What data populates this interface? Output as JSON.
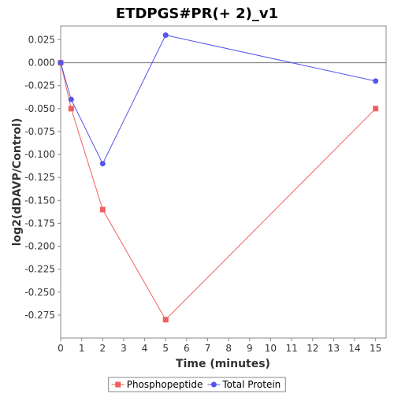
{
  "chart_data": {
    "type": "line",
    "title": "ETDPGS#PR(+ 2)_v1",
    "xlabel": "Time (minutes)",
    "ylabel": "log2(dDAVP/Control)",
    "xlim": [
      0,
      15.5
    ],
    "ylim": [
      -0.3,
      0.04
    ],
    "xticks": [
      0,
      1,
      2,
      3,
      4,
      5,
      6,
      7,
      8,
      9,
      10,
      11,
      12,
      13,
      14,
      15
    ],
    "yticks": [
      0.025,
      0.0,
      -0.025,
      -0.05,
      -0.075,
      -0.1,
      -0.125,
      -0.15,
      -0.175,
      -0.2,
      -0.225,
      -0.25,
      -0.275
    ],
    "ytick_labels": [
      "0.025",
      "0.000",
      "-0.025",
      "-0.050",
      "-0.075",
      "-0.100",
      "-0.125",
      "-0.150",
      "-0.175",
      "-0.200",
      "-0.225",
      "-0.250",
      "-0.275"
    ],
    "reference_line": 0.0,
    "grid": false,
    "legend_position": "bottom",
    "series": [
      {
        "name": "Phosphopeptide",
        "color": "#f06060",
        "marker": "square",
        "x": [
          0,
          0.5,
          2,
          5,
          15
        ],
        "y": [
          0.0,
          -0.05,
          -0.16,
          -0.28,
          -0.05
        ]
      },
      {
        "name": "Total Protein",
        "color": "#5555ee",
        "marker": "circle",
        "x": [
          0,
          0.5,
          2,
          5,
          15
        ],
        "y": [
          0.0,
          -0.04,
          -0.11,
          0.03,
          -0.02
        ]
      }
    ]
  }
}
